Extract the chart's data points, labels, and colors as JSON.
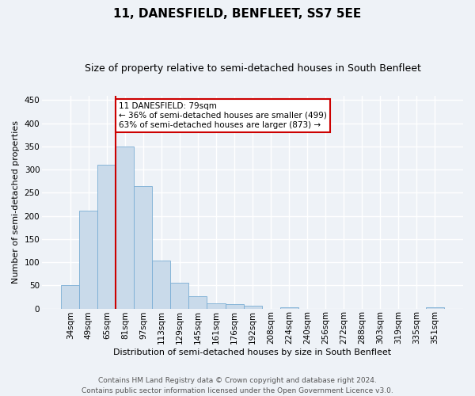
{
  "title": "11, DANESFIELD, BENFLEET, SS7 5EE",
  "subtitle": "Size of property relative to semi-detached houses in South Benfleet",
  "xlabel": "Distribution of semi-detached houses by size in South Benfleet",
  "ylabel": "Number of semi-detached properties",
  "bar_color": "#c9daea",
  "bar_edge_color": "#7aadd4",
  "categories": [
    "34sqm",
    "49sqm",
    "65sqm",
    "81sqm",
    "97sqm",
    "113sqm",
    "129sqm",
    "145sqm",
    "161sqm",
    "176sqm",
    "192sqm",
    "208sqm",
    "224sqm",
    "240sqm",
    "256sqm",
    "272sqm",
    "288sqm",
    "303sqm",
    "319sqm",
    "335sqm",
    "351sqm"
  ],
  "values": [
    50,
    211,
    311,
    350,
    265,
    104,
    55,
    26,
    11,
    10,
    6,
    0,
    3,
    0,
    0,
    0,
    0,
    0,
    0,
    0,
    3
  ],
  "annotation_text": "11 DANESFIELD: 79sqm\n← 36% of semi-detached houses are smaller (499)\n63% of semi-detached houses are larger (873) →",
  "vline_x": 2.5,
  "vline_color": "#cc0000",
  "annotation_box_facecolor": "#ffffff",
  "annotation_box_edgecolor": "#cc0000",
  "ylim": [
    0,
    460
  ],
  "yticks": [
    0,
    50,
    100,
    150,
    200,
    250,
    300,
    350,
    400,
    450
  ],
  "footer": "Contains HM Land Registry data © Crown copyright and database right 2024.\nContains public sector information licensed under the Open Government Licence v3.0.",
  "background_color": "#eef2f7",
  "grid_color": "#ffffff",
  "title_fontsize": 11,
  "subtitle_fontsize": 9,
  "axis_label_fontsize": 8,
  "tick_fontsize": 7.5,
  "annotation_fontsize": 7.5,
  "footer_fontsize": 6.5
}
